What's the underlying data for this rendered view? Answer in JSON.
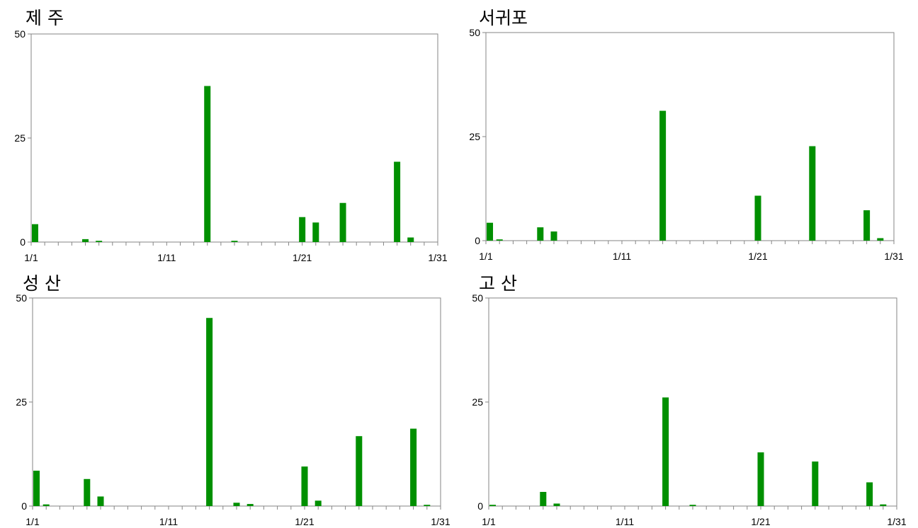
{
  "chart_data": [
    {
      "type": "bar",
      "title": "제 주",
      "x_range": [
        1,
        31
      ],
      "x_ticks": [
        1,
        11,
        21,
        31
      ],
      "x_tick_labels": [
        "1/1",
        "1/11",
        "1/21",
        "1/31"
      ],
      "ylim": [
        0,
        50
      ],
      "y_ticks": [
        0,
        25,
        50
      ],
      "y_tick_labels": [
        "0",
        "25",
        "50"
      ],
      "grid": false,
      "x": [
        1,
        5,
        6,
        14,
        16,
        21,
        22,
        24,
        28,
        29
      ],
      "values": [
        4.3,
        0.7,
        0.3,
        37.5,
        0.3,
        6.0,
        4.7,
        9.4,
        19.3,
        1.1
      ],
      "bar_color": "#009000"
    },
    {
      "type": "bar",
      "title": "서귀포",
      "x_range": [
        1,
        31
      ],
      "x_ticks": [
        1,
        11,
        21,
        31
      ],
      "x_tick_labels": [
        "1/1",
        "1/11",
        "1/21",
        "1/31"
      ],
      "ylim": [
        0,
        50
      ],
      "y_ticks": [
        0,
        25,
        50
      ],
      "y_tick_labels": [
        "0",
        "25",
        "50"
      ],
      "grid": false,
      "x": [
        1,
        2,
        5,
        6,
        14,
        21,
        25,
        29,
        30
      ],
      "values": [
        4.3,
        0.3,
        3.2,
        2.2,
        31.2,
        10.8,
        22.7,
        7.3,
        0.6
      ],
      "bar_color": "#009000"
    },
    {
      "type": "bar",
      "title": "성 산",
      "x_range": [
        1,
        31
      ],
      "x_ticks": [
        1,
        11,
        21,
        31
      ],
      "x_tick_labels": [
        "1/1",
        "1/11",
        "1/21",
        "1/31"
      ],
      "ylim": [
        0,
        50
      ],
      "y_ticks": [
        0,
        25,
        50
      ],
      "y_tick_labels": [
        "0",
        "25",
        "50"
      ],
      "grid": false,
      "x": [
        1,
        2,
        5,
        6,
        14,
        16,
        17,
        21,
        22,
        25,
        29,
        30
      ],
      "values": [
        8.5,
        0.4,
        6.5,
        2.3,
        45.2,
        0.8,
        0.5,
        9.5,
        1.3,
        16.8,
        18.6,
        0.3
      ],
      "bar_color": "#009000"
    },
    {
      "type": "bar",
      "title": "고 산",
      "x_range": [
        1,
        31
      ],
      "x_ticks": [
        1,
        11,
        21,
        31
      ],
      "x_tick_labels": [
        "1/1",
        "1/11",
        "1/21",
        "1/31"
      ],
      "ylim": [
        0,
        50
      ],
      "y_ticks": [
        25,
        50
      ],
      "y_tick_labels": [
        "25",
        "50"
      ],
      "extra_y_tick_labels": [
        "0"
      ],
      "grid": false,
      "x": [
        1,
        5,
        6,
        14,
        16,
        21,
        25,
        29,
        30
      ],
      "values": [
        0.3,
        3.4,
        0.6,
        26.1,
        0.3,
        12.9,
        10.7,
        5.7,
        0.4
      ],
      "bar_color": "#009000"
    }
  ]
}
